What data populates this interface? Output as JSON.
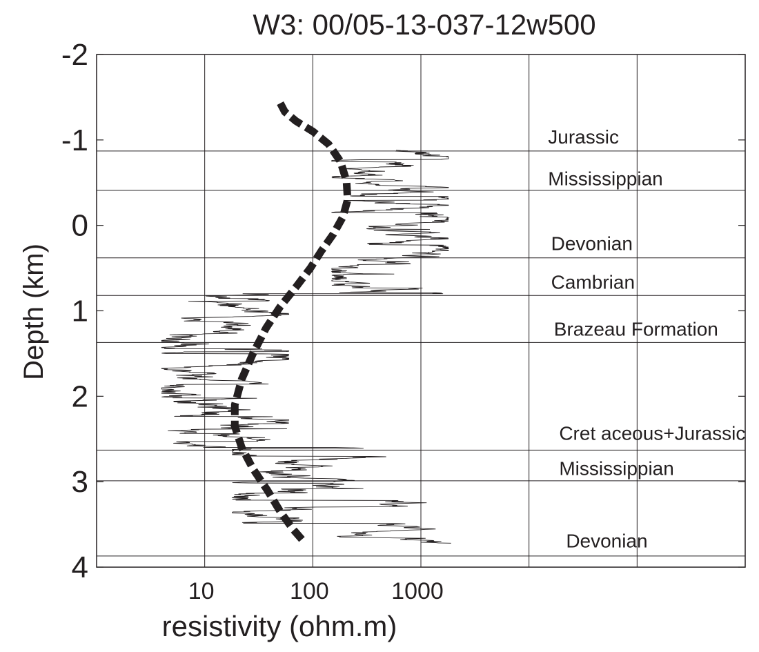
{
  "chart_data": {
    "type": "line",
    "title": "W3:  00/05-13-037-12w500",
    "xlabel": "resistivity     (ohm.m)",
    "ylabel": "Depth  (km)",
    "x_scale": "log",
    "xlim": [
      1,
      1000000
    ],
    "ylim": [
      4,
      -2
    ],
    "grid": true,
    "xticks": [
      {
        "value": 10,
        "label": "10"
      },
      {
        "value": 100,
        "label": "100"
      },
      {
        "value": 1000,
        "label": "1000"
      }
    ],
    "xgrid_values": [
      10,
      100,
      1000,
      10000,
      100000
    ],
    "yticks": [
      {
        "value": -2,
        "label": "-2"
      },
      {
        "value": -1,
        "label": "-1"
      },
      {
        "value": 0,
        "label": "0"
      },
      {
        "value": 1,
        "label": "1"
      },
      {
        "value": 2,
        "label": "2"
      },
      {
        "value": 3,
        "label": "3"
      },
      {
        "value": 4,
        "label": "4"
      }
    ],
    "formation_tops": [
      -0.87,
      -0.41,
      0.38,
      0.82,
      1.37,
      2.63,
      2.99,
      3.87
    ],
    "annotations": [
      {
        "text": "Jurassic",
        "x": 15000,
        "y": -1.04
      },
      {
        "text": "Mississippian",
        "x": 15000,
        "y": -0.55
      },
      {
        "text": "Devonian",
        "x": 16000,
        "y": 0.21
      },
      {
        "text": "Cambrian",
        "x": 16000,
        "y": 0.66
      },
      {
        "text": "Brazeau   Formation",
        "x": 17000,
        "y": 1.21
      },
      {
        "text": "Cret aceous+Jurassic",
        "x": 19000,
        "y": 2.43
      },
      {
        "text": "Mississippian",
        "x": 19000,
        "y": 2.84
      },
      {
        "text": "Devonian",
        "x": 22000,
        "y": 3.69
      }
    ],
    "series": [
      {
        "style": "dashed-thick",
        "points": [
          [
            50,
            -1.43
          ],
          [
            55,
            -1.33
          ],
          [
            70,
            -1.22
          ],
          [
            100,
            -1.1
          ],
          [
            140,
            -0.95
          ],
          [
            180,
            -0.75
          ],
          [
            205,
            -0.52
          ],
          [
            210,
            -0.3
          ],
          [
            190,
            -0.1
          ],
          [
            155,
            0.1
          ],
          [
            120,
            0.3
          ],
          [
            95,
            0.5
          ],
          [
            70,
            0.72
          ],
          [
            50,
            0.95
          ],
          [
            37,
            1.2
          ],
          [
            28,
            1.5
          ],
          [
            22,
            1.8
          ],
          [
            19,
            2.1
          ],
          [
            19,
            2.35
          ],
          [
            22,
            2.6
          ],
          [
            28,
            2.85
          ],
          [
            38,
            3.1
          ],
          [
            50,
            3.35
          ],
          [
            65,
            3.55
          ],
          [
            85,
            3.72
          ]
        ]
      },
      {
        "style": "thin-log",
        "segments": [
          {
            "depth_from": -0.88,
            "depth_to": 0.8,
            "resistivity_min": 150,
            "resistivity_max": 1800
          },
          {
            "depth_from": 0.8,
            "depth_to": 2.6,
            "resistivity_min": 4,
            "resistivity_max": 60
          },
          {
            "depth_from": 2.6,
            "depth_to": 3.72,
            "resistivity_min": 18,
            "resistivity_max": 1900
          }
        ]
      }
    ]
  }
}
